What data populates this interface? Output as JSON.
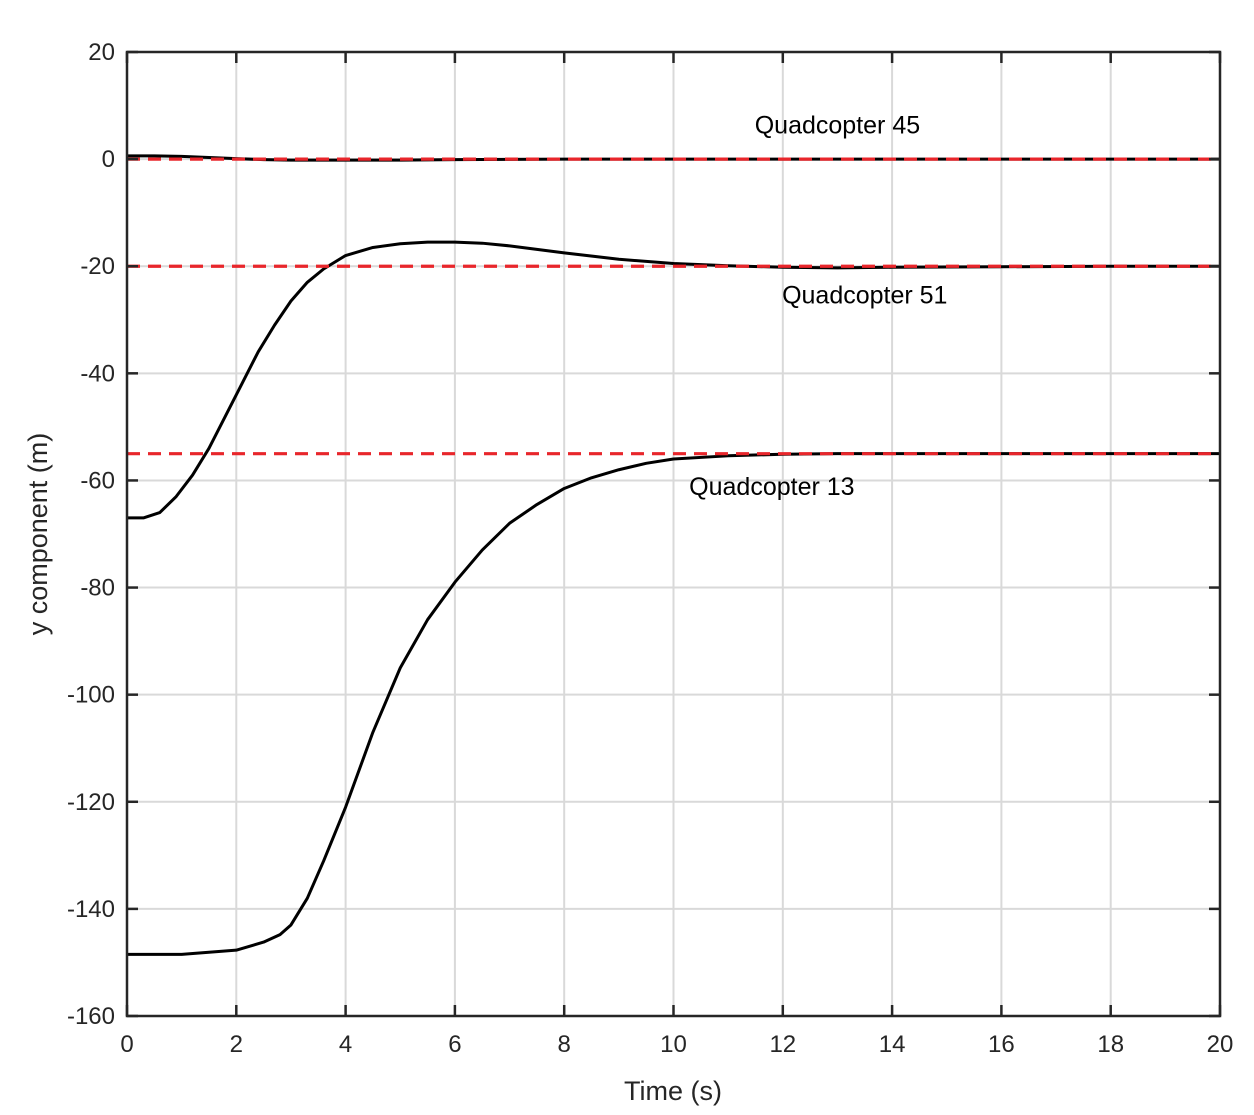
{
  "chart_data": {
    "type": "line",
    "title": "",
    "xlabel": "Time (s)",
    "ylabel": "y component (m)",
    "xlim": [
      0,
      20
    ],
    "ylim": [
      -160,
      20
    ],
    "xticks": [
      0,
      2,
      4,
      6,
      8,
      10,
      12,
      14,
      16,
      18,
      20
    ],
    "yticks": [
      20,
      0,
      -20,
      -40,
      -60,
      -80,
      -100,
      -120,
      -140,
      -160
    ],
    "grid": true,
    "legend": "none",
    "colors": {
      "trajectory": "#000000",
      "reference": "#e8262b",
      "grid": "#d9d9d9",
      "axes": "#262626"
    },
    "series": [
      {
        "style": "solid",
        "x": [
          0,
          0.5,
          1,
          1.5,
          2,
          2.5,
          3,
          3.5,
          4,
          5,
          6,
          8,
          10,
          12,
          14,
          16,
          18,
          20
        ],
        "y": [
          0.6,
          0.6,
          0.5,
          0.3,
          0.1,
          -0.1,
          -0.2,
          -0.2,
          -0.2,
          -0.2,
          -0.1,
          0,
          0,
          0,
          0,
          0,
          0,
          0
        ]
      },
      {
        "style": "solid",
        "x": [
          0,
          0.3,
          0.6,
          0.9,
          1.2,
          1.5,
          1.8,
          2.1,
          2.4,
          2.7,
          3.0,
          3.3,
          3.6,
          4.0,
          4.5,
          5.0,
          5.5,
          6.0,
          6.5,
          7.0,
          8.0,
          9.0,
          10.0,
          11.0,
          12.0,
          13.0,
          14.0,
          16.0,
          18.0,
          20.0
        ],
        "y": [
          -67,
          -67,
          -66,
          -63,
          -59,
          -54,
          -48,
          -42,
          -36,
          -31,
          -26.5,
          -23,
          -20.5,
          -18,
          -16.5,
          -15.8,
          -15.5,
          -15.5,
          -15.7,
          -16.2,
          -17.5,
          -18.7,
          -19.5,
          -19.9,
          -20.2,
          -20.3,
          -20.2,
          -20.1,
          -20,
          -20
        ]
      },
      {
        "style": "solid",
        "x": [
          0,
          1.0,
          2.0,
          2.5,
          2.8,
          3.0,
          3.3,
          3.6,
          4.0,
          4.5,
          5.0,
          5.5,
          6.0,
          6.5,
          7.0,
          7.5,
          8.0,
          8.5,
          9.0,
          9.5,
          10.0,
          11.0,
          12.0,
          13.0,
          14.0,
          16.0,
          18.0,
          20.0
        ],
        "y": [
          -148.5,
          -148.5,
          -147.7,
          -146.2,
          -144.8,
          -143,
          -138,
          -131,
          -121,
          -107,
          -95,
          -86,
          -79,
          -73,
          -68,
          -64.5,
          -61.5,
          -59.5,
          -58,
          -56.8,
          -56,
          -55.4,
          -55.1,
          -55,
          -55,
          -55,
          -55,
          -55
        ]
      },
      {
        "style": "dashed",
        "x": [
          0,
          20
        ],
        "y": [
          0,
          0
        ]
      },
      {
        "style": "dashed",
        "x": [
          0,
          20
        ],
        "y": [
          -20,
          -20
        ]
      },
      {
        "style": "dashed",
        "x": [
          0,
          20
        ],
        "y": [
          -55,
          -55
        ]
      }
    ],
    "annotations": [
      {
        "text": "Quadcopter 45",
        "x": 13.0,
        "y": 6.5
      },
      {
        "text": "Quadcopter 51",
        "x": 13.5,
        "y": -25.3
      },
      {
        "text": "Quadcopter 13",
        "x": 11.8,
        "y": -61
      }
    ]
  }
}
